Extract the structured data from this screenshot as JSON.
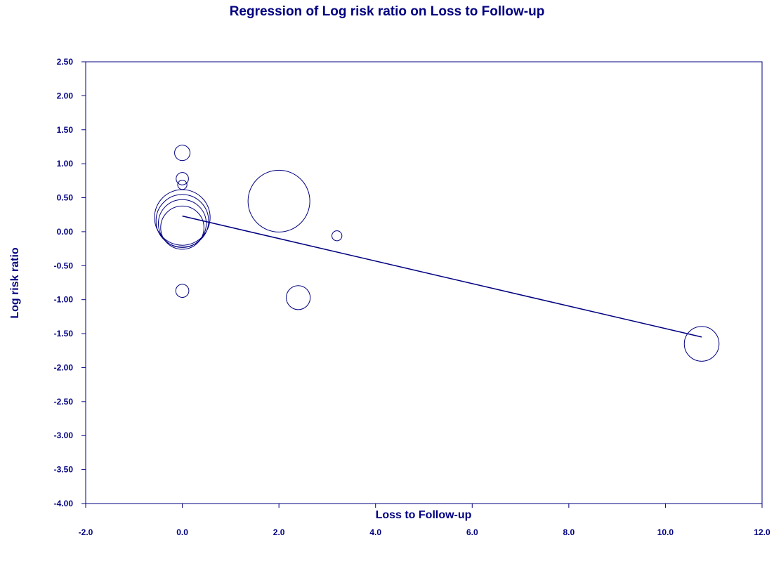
{
  "chart_data": {
    "type": "scatter",
    "title": "Regression of Log risk ratio on Loss to Follow-up",
    "xlabel": "Loss to Follow-up",
    "ylabel": "Log risk ratio",
    "xlim": [
      -2.0,
      12.0
    ],
    "ylim": [
      -4.0,
      2.5
    ],
    "x_ticks": [
      "-2.0",
      "0.0",
      "2.0",
      "4.0",
      "6.0",
      "8.0",
      "10.0",
      "12.0"
    ],
    "y_ticks": [
      "2.50",
      "2.00",
      "1.50",
      "1.00",
      "0.50",
      "0.00",
      "-0.50",
      "-1.00",
      "-1.50",
      "-2.00",
      "-2.50",
      "-3.00",
      "-3.50",
      "-4.00"
    ],
    "grid": false,
    "color": "#000080",
    "points": [
      {
        "x": 0.0,
        "y": 1.16,
        "weight": 0.2
      },
      {
        "x": 0.0,
        "y": 0.78,
        "weight": 0.16
      },
      {
        "x": 0.0,
        "y": 0.69,
        "weight": 0.12
      },
      {
        "x": 0.0,
        "y": 0.21,
        "weight": 0.72
      },
      {
        "x": 0.0,
        "y": 0.16,
        "weight": 0.68
      },
      {
        "x": 0.0,
        "y": 0.12,
        "weight": 0.62
      },
      {
        "x": 0.0,
        "y": 0.06,
        "weight": 0.56
      },
      {
        "x": 0.0,
        "y": -0.87,
        "weight": 0.17
      },
      {
        "x": 2.0,
        "y": 0.45,
        "weight": 0.8
      },
      {
        "x": 2.4,
        "y": -0.97,
        "weight": 0.31
      },
      {
        "x": 3.2,
        "y": -0.06,
        "weight": 0.13
      },
      {
        "x": 10.75,
        "y": -1.65,
        "weight": 0.45
      }
    ],
    "regression_line": {
      "x": [
        0.0,
        10.75
      ],
      "y": [
        0.23,
        -1.55
      ]
    }
  }
}
